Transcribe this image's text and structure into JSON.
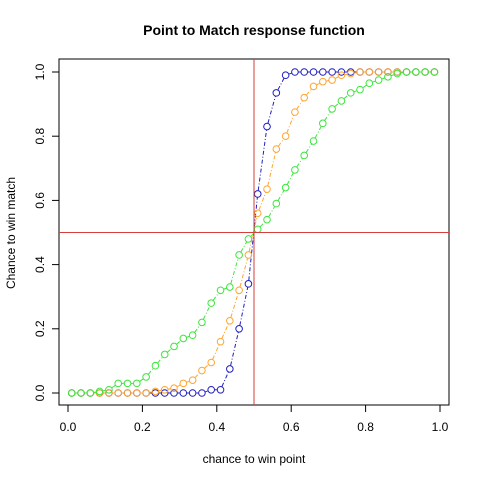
{
  "chart_data": {
    "type": "scatter",
    "title": "Point to Match response function",
    "xlabel": "chance to win point",
    "ylabel": "Chance to win match",
    "xlim": [
      0.0,
      1.0
    ],
    "ylim": [
      0.0,
      1.0
    ],
    "x_ticks": [
      "0.0",
      "0.2",
      "0.4",
      "0.6",
      "0.8",
      "1.0"
    ],
    "y_ticks": [
      "0.0",
      "0.2",
      "0.4",
      "0.6",
      "0.8",
      "1.0"
    ],
    "grid": false,
    "legend": "none",
    "x": [
      0.01,
      0.035,
      0.06,
      0.085,
      0.11,
      0.135,
      0.16,
      0.185,
      0.21,
      0.235,
      0.26,
      0.285,
      0.31,
      0.335,
      0.36,
      0.385,
      0.41,
      0.435,
      0.46,
      0.485,
      0.51,
      0.535,
      0.56,
      0.585,
      0.61,
      0.635,
      0.66,
      0.685,
      0.71,
      0.735,
      0.76,
      0.785,
      0.81,
      0.835,
      0.86,
      0.885,
      0.91,
      0.935,
      0.96,
      0.985
    ],
    "reference_lines": {
      "x": 0.5,
      "y": 0.5,
      "color": "#d43f3a"
    },
    "series": [
      {
        "color": "#1f1fbf",
        "values": [
          0.0,
          0.0,
          0.0,
          0.0,
          0.0,
          0.0,
          0.0,
          0.0,
          0.0,
          0.0,
          0.0,
          0.0,
          0.0,
          0.0,
          0.0,
          0.01,
          0.01,
          0.075,
          0.2,
          0.34,
          0.62,
          0.83,
          0.935,
          0.99,
          1.0,
          1.0,
          1.0,
          1.0,
          1.0,
          1.0,
          1.0,
          1.0,
          1.0,
          1.0,
          1.0,
          1.0,
          1.0,
          1.0,
          1.0,
          1.0
        ]
      },
      {
        "color": "#ffa52f",
        "values": [
          0.0,
          0.0,
          0.0,
          0.0,
          0.0,
          0.0,
          0.0,
          0.0,
          0.0,
          0.005,
          0.01,
          0.015,
          0.03,
          0.04,
          0.07,
          0.095,
          0.16,
          0.225,
          0.32,
          0.43,
          0.56,
          0.635,
          0.76,
          0.8,
          0.875,
          0.92,
          0.955,
          0.97,
          0.975,
          0.99,
          0.995,
          1.0,
          1.0,
          1.0,
          1.0,
          1.0,
          1.0,
          1.0,
          1.0,
          1.0
        ]
      },
      {
        "color": "#3ce63c",
        "values": [
          0.0,
          0.0,
          0.0,
          0.005,
          0.01,
          0.03,
          0.03,
          0.03,
          0.05,
          0.085,
          0.12,
          0.145,
          0.17,
          0.18,
          0.22,
          0.28,
          0.32,
          0.33,
          0.43,
          0.48,
          0.51,
          0.54,
          0.59,
          0.64,
          0.695,
          0.74,
          0.785,
          0.84,
          0.885,
          0.91,
          0.935,
          0.945,
          0.965,
          0.975,
          0.985,
          0.995,
          1.0,
          1.0,
          1.0,
          1.0
        ]
      }
    ]
  }
}
